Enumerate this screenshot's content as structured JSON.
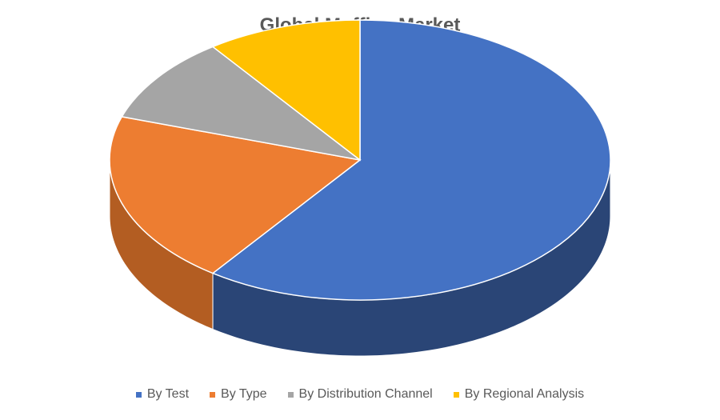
{
  "chart_data": {
    "type": "pie",
    "style": "3d",
    "title": "Global Muffins Market",
    "categories": [
      "By Test",
      "By Type",
      "By Distribution Channel",
      "By Regional Analysis"
    ],
    "values": [
      60,
      20,
      10,
      10
    ],
    "colors": [
      "#4472c4",
      "#ed7d31",
      "#a5a5a5",
      "#ffc000"
    ],
    "side_colors": [
      "#2a4576",
      "#b35d22",
      "#7a7a7a",
      "#bf9000"
    ],
    "legend_position": "bottom"
  }
}
